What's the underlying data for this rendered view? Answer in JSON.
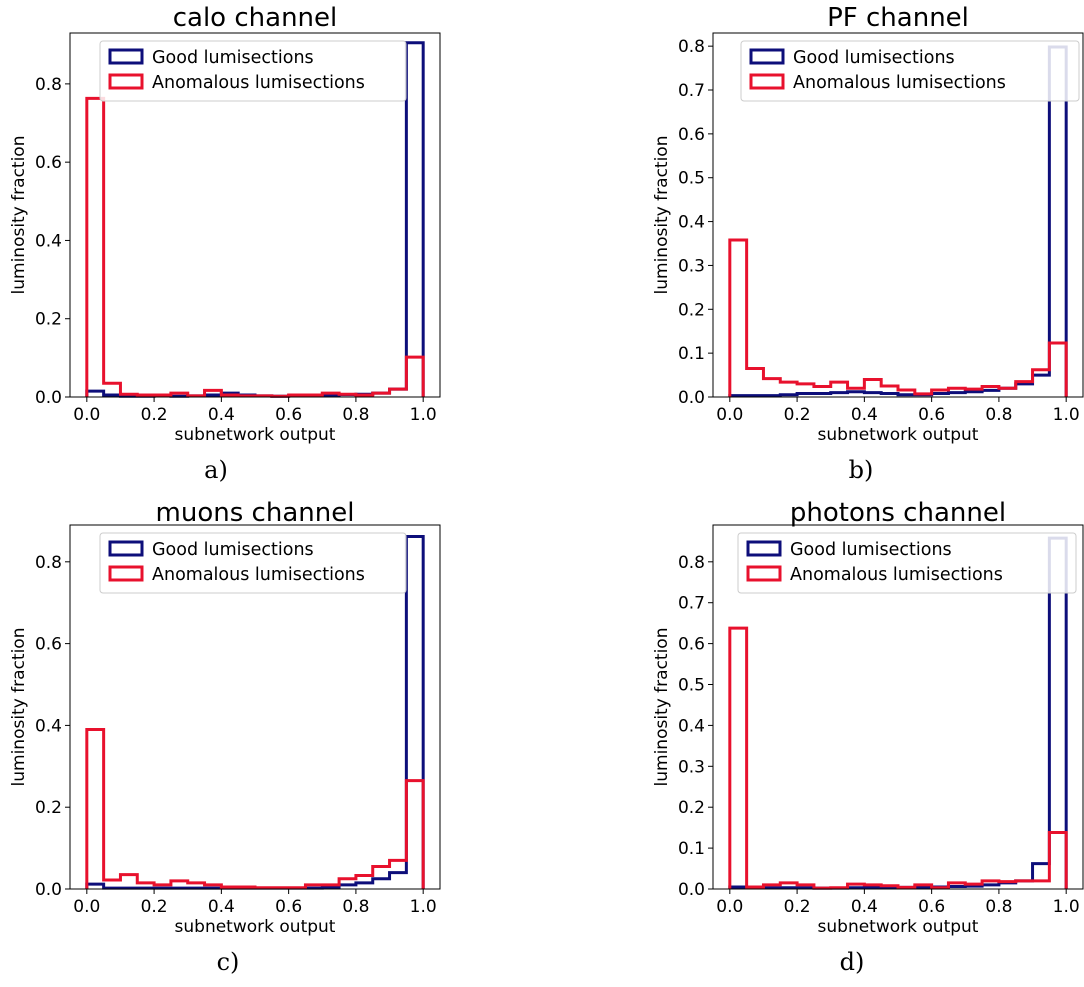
{
  "colors": {
    "good": "#0d0e7a",
    "anomalous": "#e8112d",
    "axes": "#000000"
  },
  "chart_data": [
    {
      "type": "histogram",
      "caption": "a)",
      "title": "calo channel",
      "xlabel": "subnetwork output",
      "ylabel": "luminosity fraction",
      "xlim": [
        -0.05,
        1.05
      ],
      "ylim": [
        0,
        0.93
      ],
      "xticks": [
        0.0,
        0.2,
        0.4,
        0.6,
        0.8,
        1.0
      ],
      "xtick_labels": [
        "0.0",
        "0.2",
        "0.4",
        "0.6",
        "0.8",
        "1.0"
      ],
      "yticks": [
        0.0,
        0.2,
        0.4,
        0.6,
        0.8
      ],
      "ytick_labels": [
        "0.0",
        "0.2",
        "0.4",
        "0.6",
        "0.8"
      ],
      "bin_edges": [
        0.0,
        0.05,
        0.1,
        0.15,
        0.2,
        0.25,
        0.3,
        0.35,
        0.4,
        0.45,
        0.5,
        0.55,
        0.6,
        0.65,
        0.7,
        0.75,
        0.8,
        0.85,
        0.9,
        0.95,
        1.0
      ],
      "legend": {
        "position": "top-right",
        "entries": [
          "Good lumisections",
          "Anomalous lumisections"
        ]
      },
      "series": [
        {
          "name": "Good lumisections",
          "color_key": "good",
          "values": [
            0.015,
            0.005,
            0.002,
            0.002,
            0.003,
            0.002,
            0.003,
            0.005,
            0.01,
            0.005,
            0.003,
            0.002,
            0.003,
            0.004,
            0.005,
            0.006,
            0.007,
            0.01,
            0.02,
            0.905
          ]
        },
        {
          "name": "Anomalous lumisections",
          "color_key": "anomalous",
          "values": [
            0.763,
            0.035,
            0.007,
            0.005,
            0.005,
            0.01,
            0.003,
            0.017,
            0.005,
            0.003,
            0.003,
            0.002,
            0.005,
            0.005,
            0.01,
            0.007,
            0.005,
            0.01,
            0.02,
            0.102
          ]
        }
      ]
    },
    {
      "type": "histogram",
      "caption": "b)",
      "title": "PF channel",
      "xlabel": "subnetwork output",
      "ylabel": "luminosity fraction",
      "xlim": [
        -0.05,
        1.05
      ],
      "ylim": [
        0,
        0.83
      ],
      "xticks": [
        0.0,
        0.2,
        0.4,
        0.6,
        0.8,
        1.0
      ],
      "xtick_labels": [
        "0.0",
        "0.2",
        "0.4",
        "0.6",
        "0.8",
        "1.0"
      ],
      "yticks": [
        0.0,
        0.1,
        0.2,
        0.3,
        0.4,
        0.5,
        0.6,
        0.7,
        0.8
      ],
      "ytick_labels": [
        "0.0",
        "0.1",
        "0.2",
        "0.3",
        "0.4",
        "0.5",
        "0.6",
        "0.7",
        "0.8"
      ],
      "bin_edges": [
        0.0,
        0.05,
        0.1,
        0.15,
        0.2,
        0.25,
        0.3,
        0.35,
        0.4,
        0.45,
        0.5,
        0.55,
        0.6,
        0.65,
        0.7,
        0.75,
        0.8,
        0.85,
        0.9,
        0.95,
        1.0
      ],
      "legend": {
        "position": "top-right",
        "entries": [
          "Good lumisections",
          "Anomalous lumisections"
        ]
      },
      "series": [
        {
          "name": "Good lumisections",
          "color_key": "good",
          "values": [
            0.003,
            0.003,
            0.003,
            0.005,
            0.008,
            0.008,
            0.01,
            0.012,
            0.01,
            0.008,
            0.005,
            0.005,
            0.008,
            0.01,
            0.012,
            0.015,
            0.02,
            0.03,
            0.05,
            0.798
          ]
        },
        {
          "name": "Anomalous lumisections",
          "color_key": "anomalous",
          "values": [
            0.358,
            0.065,
            0.042,
            0.034,
            0.03,
            0.024,
            0.034,
            0.02,
            0.04,
            0.025,
            0.016,
            0.007,
            0.016,
            0.02,
            0.018,
            0.024,
            0.02,
            0.035,
            0.062,
            0.123
          ]
        }
      ]
    },
    {
      "type": "histogram",
      "caption": "c)",
      "title": "muons channel",
      "xlabel": "subnetwork output",
      "ylabel": "luminosity fraction",
      "xlim": [
        -0.05,
        1.05
      ],
      "ylim": [
        0,
        0.89
      ],
      "xticks": [
        0.0,
        0.2,
        0.4,
        0.6,
        0.8,
        1.0
      ],
      "xtick_labels": [
        "0.0",
        "0.2",
        "0.4",
        "0.6",
        "0.8",
        "1.0"
      ],
      "yticks": [
        0.0,
        0.2,
        0.4,
        0.6,
        0.8
      ],
      "ytick_labels": [
        "0.0",
        "0.2",
        "0.4",
        "0.6",
        "0.8"
      ],
      "bin_edges": [
        0.0,
        0.05,
        0.1,
        0.15,
        0.2,
        0.25,
        0.3,
        0.35,
        0.4,
        0.45,
        0.5,
        0.55,
        0.6,
        0.65,
        0.7,
        0.75,
        0.8,
        0.85,
        0.9,
        0.95,
        1.0
      ],
      "legend": {
        "position": "top-right",
        "entries": [
          "Good lumisections",
          "Anomalous lumisections"
        ]
      },
      "series": [
        {
          "name": "Good lumisections",
          "color_key": "good",
          "values": [
            0.012,
            0.002,
            0.002,
            0.002,
            0.002,
            0.002,
            0.002,
            0.002,
            0.002,
            0.002,
            0.002,
            0.002,
            0.002,
            0.002,
            0.005,
            0.01,
            0.015,
            0.025,
            0.04,
            0.862
          ]
        },
        {
          "name": "Anomalous lumisections",
          "color_key": "anomalous",
          "values": [
            0.39,
            0.022,
            0.035,
            0.015,
            0.01,
            0.02,
            0.015,
            0.01,
            0.005,
            0.005,
            0.003,
            0.003,
            0.003,
            0.01,
            0.01,
            0.025,
            0.033,
            0.055,
            0.07,
            0.265
          ]
        }
      ]
    },
    {
      "type": "histogram",
      "caption": "d)",
      "title": "photons channel",
      "xlabel": "subnetwork output",
      "ylabel": "luminosity fraction",
      "xlim": [
        -0.05,
        1.05
      ],
      "ylim": [
        0,
        0.89
      ],
      "xticks": [
        0.0,
        0.2,
        0.4,
        0.6,
        0.8,
        1.0
      ],
      "xtick_labels": [
        "0.0",
        "0.2",
        "0.4",
        "0.6",
        "0.8",
        "1.0"
      ],
      "yticks": [
        0.0,
        0.1,
        0.2,
        0.3,
        0.4,
        0.5,
        0.6,
        0.7,
        0.8
      ],
      "ytick_labels": [
        "0.0",
        "0.1",
        "0.2",
        "0.3",
        "0.4",
        "0.5",
        "0.6",
        "0.7",
        "0.8"
      ],
      "bin_edges": [
        0.0,
        0.05,
        0.1,
        0.15,
        0.2,
        0.25,
        0.3,
        0.35,
        0.4,
        0.45,
        0.5,
        0.55,
        0.6,
        0.65,
        0.7,
        0.75,
        0.8,
        0.85,
        0.9,
        0.95,
        1.0
      ],
      "legend": {
        "position": "top-right",
        "entries": [
          "Good lumisections",
          "Anomalous lumisections"
        ]
      },
      "series": [
        {
          "name": "Good lumisections",
          "color_key": "good",
          "values": [
            0.005,
            0.003,
            0.003,
            0.003,
            0.003,
            0.002,
            0.002,
            0.003,
            0.004,
            0.005,
            0.004,
            0.005,
            0.005,
            0.006,
            0.007,
            0.01,
            0.015,
            0.02,
            0.062,
            0.858
          ]
        },
        {
          "name": "Anomalous lumisections",
          "color_key": "anomalous",
          "values": [
            0.638,
            0.005,
            0.01,
            0.015,
            0.01,
            0.002,
            0.003,
            0.012,
            0.01,
            0.008,
            0.004,
            0.01,
            0.003,
            0.015,
            0.012,
            0.02,
            0.018,
            0.02,
            0.02,
            0.138
          ]
        }
      ]
    }
  ]
}
